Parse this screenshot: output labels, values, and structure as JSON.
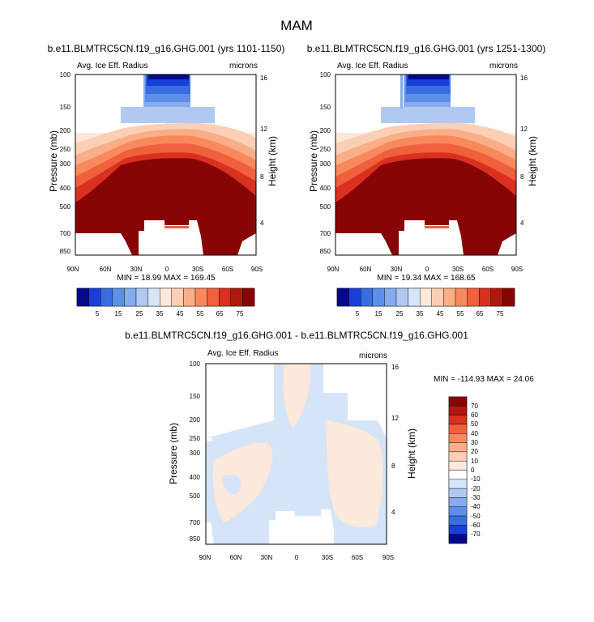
{
  "figure_title": "MAM",
  "chart_data": [
    {
      "type": "heatmap",
      "subtitle": "b.e11.BLMTRC5CN.f19_g16.GHG.001 (yrs 1101-1150)",
      "left_label": "Avg. Ice Eff. Radius",
      "right_label": "microns",
      "ylabel": "Pressure (mb)",
      "ylabel_right": "Height (km)",
      "x_ticks": [
        "90N",
        "60N",
        "30N",
        "0",
        "30S",
        "60S",
        "90S"
      ],
      "y_ticks": [
        "100",
        "150",
        "200",
        "250",
        "300",
        "400",
        "500",
        "700",
        "850"
      ],
      "y_right_ticks": [
        "16",
        "12",
        "8",
        "4"
      ],
      "stats_text": "MIN = 18.99  MAX = 169.45",
      "min": 18.99,
      "max": 169.45,
      "colorbar_labels": [
        "5",
        "15",
        "25",
        "35",
        "45",
        "55",
        "65",
        "75"
      ]
    },
    {
      "type": "heatmap",
      "subtitle": "b.e11.BLMTRC5CN.f19_g16.GHG.001 (yrs 1251-1300)",
      "left_label": "Avg. Ice Eff. Radius",
      "right_label": "microns",
      "ylabel": "Pressure (mb)",
      "ylabel_right": "Height (km)",
      "x_ticks": [
        "90N",
        "60N",
        "30N",
        "0",
        "30S",
        "60S",
        "90S"
      ],
      "y_ticks": [
        "100",
        "150",
        "200",
        "250",
        "300",
        "400",
        "500",
        "700",
        "850"
      ],
      "y_right_ticks": [
        "16",
        "12",
        "8",
        "4"
      ],
      "stats_text": "MIN = 19.34  MAX = 168.65",
      "min": 19.34,
      "max": 168.65,
      "colorbar_labels": [
        "5",
        "15",
        "25",
        "35",
        "45",
        "55",
        "65",
        "75"
      ]
    },
    {
      "type": "heatmap",
      "subtitle": "b.e11.BLMTRC5CN.f19_g16.GHG.001 - b.e11.BLMTRC5CN.f19_g16.GHG.001",
      "left_label": "Avg. Ice Eff. Radius",
      "right_label": "microns",
      "ylabel": "Pressure (mb)",
      "ylabel_right": "Height (km)",
      "x_ticks": [
        "90N",
        "60N",
        "30N",
        "0",
        "30S",
        "60S",
        "90S"
      ],
      "y_ticks": [
        "100",
        "150",
        "200",
        "250",
        "300",
        "400",
        "500",
        "700",
        "850"
      ],
      "y_right_ticks": [
        "16",
        "12",
        "8",
        "4"
      ],
      "stats_text": "MIN = -114.93  MAX = 24.06",
      "min": -114.93,
      "max": 24.06,
      "colorbar_labels": [
        "70",
        "60",
        "50",
        "40",
        "30",
        "20",
        "10",
        "0",
        "-10",
        "-20",
        "-30",
        "-40",
        "-50",
        "-60",
        "-70"
      ]
    }
  ],
  "colors": {
    "seq": [
      "#08088a",
      "#1a3fd9",
      "#3a6ee0",
      "#5d8fe8",
      "#86abee",
      "#b0c9f2",
      "#d6e4f8",
      "#fde8dc",
      "#fbcfb5",
      "#f9ae88",
      "#f7895d",
      "#f0603b",
      "#d93020",
      "#b0180e",
      "#880505"
    ],
    "diff": [
      "#880505",
      "#b0180e",
      "#d93020",
      "#f0603b",
      "#f7895d",
      "#f9ae88",
      "#fbcfb5",
      "#fde8dc",
      "#ffffff",
      "#d6e4f8",
      "#b0c9f2",
      "#86abee",
      "#5d8fe8",
      "#3a6ee0",
      "#1a3fd9",
      "#08088a"
    ],
    "diff_warm": "#fde8dc",
    "diff_cool": "#d6e4f8"
  }
}
